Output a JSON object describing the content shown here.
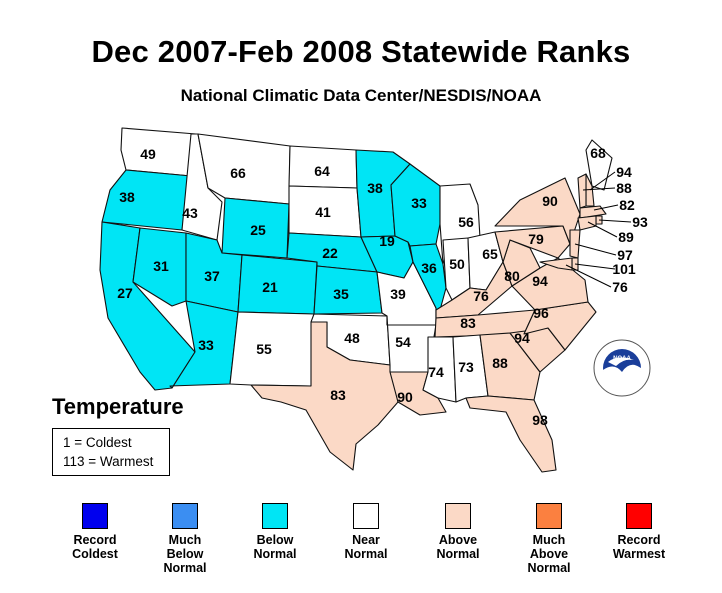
{
  "title": "Dec 2007-Feb 2008 Statewide Ranks",
  "subtitle": "National Climatic Data Center/NESDIS/NOAA",
  "legend_title": "Temperature",
  "key": {
    "line1": "1 = Coldest",
    "line2": "113 = Warmest"
  },
  "colors": {
    "record_coldest": "#0000ee",
    "much_below": "#3b8ef2",
    "below": "#00e5f5",
    "near": "#ffffff",
    "above": "#fbd9c6",
    "much_above": "#fb8040",
    "record_warmest": "#ff0000"
  },
  "legend": [
    {
      "label": "Record\nColdest",
      "color": "#0000ee"
    },
    {
      "label": "Much\nBelow\nNormal",
      "color": "#3b8ef2"
    },
    {
      "label": "Below\nNormal",
      "color": "#00e5f5"
    },
    {
      "label": "Near\nNormal",
      "color": "#ffffff"
    },
    {
      "label": "Above\nNormal",
      "color": "#fbd9c6"
    },
    {
      "label": "Much\nAbove\nNormal",
      "color": "#fb8040"
    },
    {
      "label": "Record\nWarmest",
      "color": "#ff0000"
    }
  ],
  "states": {
    "WA": {
      "rank": "49",
      "category": "near"
    },
    "OR": {
      "rank": "38",
      "category": "below"
    },
    "CA": {
      "rank": "27",
      "category": "below"
    },
    "NV": {
      "rank": "31",
      "category": "below"
    },
    "ID": {
      "rank": "43",
      "category": "near"
    },
    "MT": {
      "rank": "66",
      "category": "near"
    },
    "WY": {
      "rank": "25",
      "category": "below"
    },
    "UT": {
      "rank": "37",
      "category": "below"
    },
    "AZ": {
      "rank": "33",
      "category": "below"
    },
    "CO": {
      "rank": "21",
      "category": "below"
    },
    "NM": {
      "rank": "55",
      "category": "near"
    },
    "ND": {
      "rank": "64",
      "category": "near"
    },
    "SD": {
      "rank": "41",
      "category": "near"
    },
    "NE": {
      "rank": "22",
      "category": "below"
    },
    "KS": {
      "rank": "35",
      "category": "below"
    },
    "OK": {
      "rank": "48",
      "category": "near"
    },
    "TX": {
      "rank": "83",
      "category": "above"
    },
    "MN": {
      "rank": "38",
      "category": "below"
    },
    "IA": {
      "rank": "19",
      "category": "below"
    },
    "MO": {
      "rank": "39",
      "category": "near"
    },
    "AR": {
      "rank": "54",
      "category": "near"
    },
    "LA": {
      "rank": "90",
      "category": "above"
    },
    "WI": {
      "rank": "33",
      "category": "below"
    },
    "IL": {
      "rank": "36",
      "category": "below"
    },
    "MI": {
      "rank": "56",
      "category": "near"
    },
    "IN": {
      "rank": "50",
      "category": "near"
    },
    "OH": {
      "rank": "65",
      "category": "near"
    },
    "KY": {
      "rank": "76",
      "category": "above"
    },
    "TN": {
      "rank": "83",
      "category": "above"
    },
    "MS": {
      "rank": "74",
      "category": "near"
    },
    "AL": {
      "rank": "73",
      "category": "near"
    },
    "GA": {
      "rank": "88",
      "category": "above"
    },
    "FL": {
      "rank": "98",
      "category": "above"
    },
    "SC": {
      "rank": "94",
      "category": "above"
    },
    "NC": {
      "rank": "96",
      "category": "above"
    },
    "VA": {
      "rank": "94",
      "category": "above"
    },
    "WV": {
      "rank": "80",
      "category": "above"
    },
    "PA": {
      "rank": "79",
      "category": "above"
    },
    "NY": {
      "rank": "90",
      "category": "above"
    },
    "ME": {
      "rank": "68",
      "category": "near"
    },
    "NH": {
      "rank": "94",
      "category": "above"
    },
    "VT": {
      "rank": "88",
      "category": "above"
    },
    "MA": {
      "rank": "82",
      "category": "above"
    },
    "RI": {
      "rank": "93",
      "category": "above"
    },
    "CT": {
      "rank": "89",
      "category": "above"
    },
    "NJ": {
      "rank": "97",
      "category": "above"
    },
    "DE": {
      "rank": "101",
      "category": "above"
    },
    "MD": {
      "rank": "76",
      "category": "above"
    }
  }
}
